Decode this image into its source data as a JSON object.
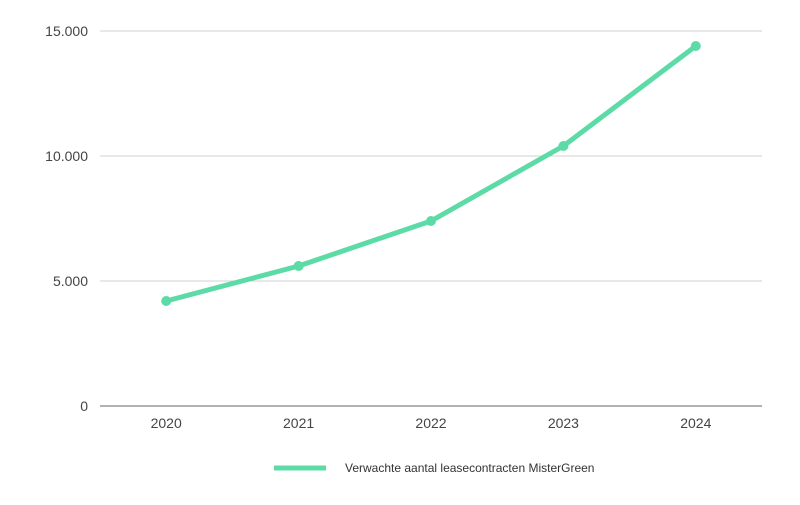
{
  "chart_data": {
    "type": "line",
    "title": "",
    "xlabel": "",
    "ylabel": "",
    "categories": [
      "2020",
      "2021",
      "2022",
      "2023",
      "2024"
    ],
    "series": [
      {
        "name": "Verwachte aantal leasecontracten MisterGreen",
        "values": [
          4200,
          5600,
          7400,
          10400,
          14400
        ],
        "color": "#5cdba6"
      }
    ],
    "ylim": [
      0,
      15000
    ],
    "yticks": [
      {
        "value": 0,
        "label": "0"
      },
      {
        "value": 5000,
        "label": "5.000"
      },
      {
        "value": 10000,
        "label": "10.000"
      },
      {
        "value": 15000,
        "label": "15.000"
      }
    ],
    "grid": true,
    "legend": "bottom"
  }
}
